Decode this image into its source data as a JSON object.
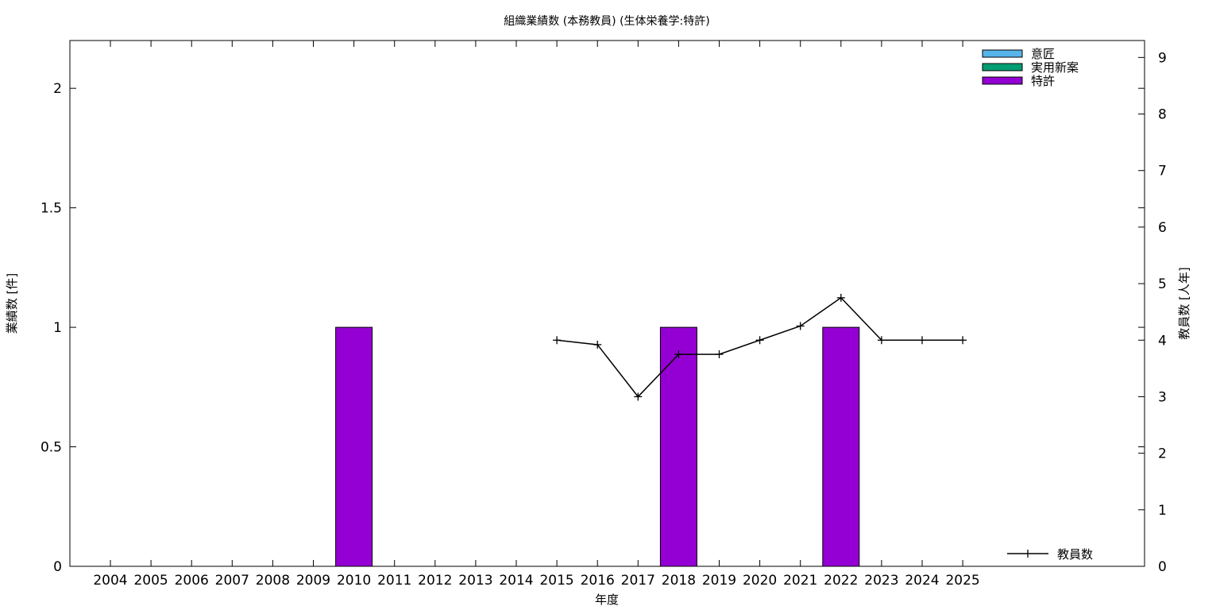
{
  "chart_data": {
    "type": "bar",
    "title": "組織業績数 (本務教員) (生体栄養学:特許)",
    "xlabel": "年度",
    "ylabel": "業績数 [件]",
    "y2label": "教員数 [人年]",
    "ylim": [
      0,
      2.2
    ],
    "y2lim": [
      0,
      9.3
    ],
    "yticks": [
      "0",
      "0.5",
      "1",
      "1.5",
      "2"
    ],
    "y2ticks": [
      "0",
      "1",
      "2",
      "3",
      "4",
      "5",
      "6",
      "7",
      "8",
      "9"
    ],
    "categories": [
      "2004",
      "2005",
      "2006",
      "2007",
      "2008",
      "2009",
      "2010",
      "2011",
      "2012",
      "2013",
      "2014",
      "2015",
      "2016",
      "2017",
      "2018",
      "2019",
      "2020",
      "2021",
      "2022",
      "2023",
      "2024",
      "2025"
    ],
    "series": [
      {
        "name": "意匠",
        "kind": "bar",
        "color": "#56b4e9",
        "values": [
          0,
          0,
          0,
          0,
          0,
          0,
          0,
          0,
          0,
          0,
          0,
          0,
          0,
          0,
          0,
          0,
          0,
          0,
          0,
          0,
          0,
          0
        ]
      },
      {
        "name": "実用新案",
        "kind": "bar",
        "color": "#009e73",
        "values": [
          0,
          0,
          0,
          0,
          0,
          0,
          0,
          0,
          0,
          0,
          0,
          0,
          0,
          0,
          0,
          0,
          0,
          0,
          0,
          0,
          0,
          0
        ]
      },
      {
        "name": "特許",
        "kind": "bar",
        "color": "#9400d3",
        "values": [
          0,
          0,
          0,
          0,
          0,
          0,
          1,
          0,
          0,
          0,
          0,
          0,
          0,
          0,
          1,
          0,
          0,
          0,
          1,
          0,
          0,
          0
        ]
      },
      {
        "name": "教員数",
        "kind": "line",
        "axis": "y2",
        "color": "#000000",
        "x": [
          "2015",
          "2016",
          "2017",
          "2018",
          "2019",
          "2020",
          "2021",
          "2022",
          "2023",
          "2024",
          "2025"
        ],
        "values": [
          4,
          3.92,
          3,
          3.75,
          3.75,
          4,
          4.25,
          4.75,
          4,
          4,
          4
        ]
      }
    ],
    "grid": false,
    "legend": {
      "bars_position": "top-right",
      "line_position": "bottom-right"
    }
  }
}
